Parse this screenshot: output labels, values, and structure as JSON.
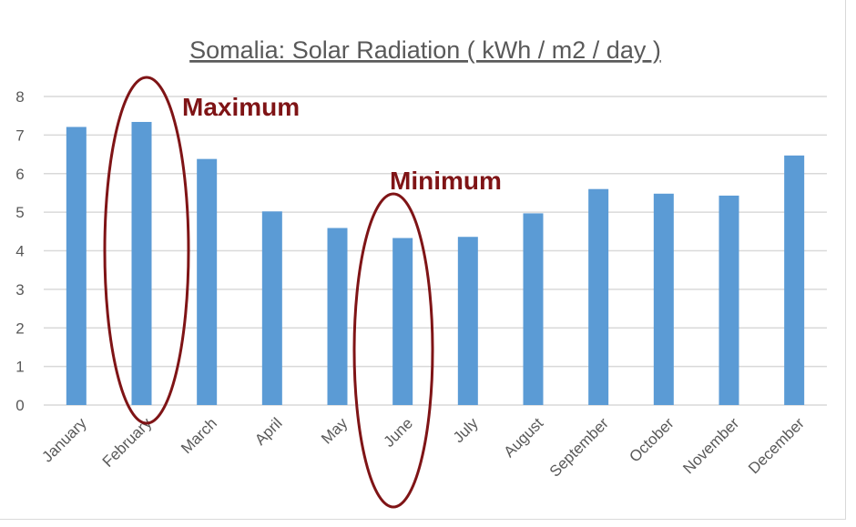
{
  "chart_data": {
    "type": "bar",
    "title": "Somalia: Solar Radiation ( kWh / m2 / day )",
    "xlabel": "",
    "ylabel": "",
    "categories": [
      "January",
      "February",
      "March",
      "April",
      "May",
      "June",
      "July",
      "August",
      "September",
      "October",
      "November",
      "December"
    ],
    "values": [
      7.21,
      7.34,
      6.38,
      5.02,
      4.59,
      4.33,
      4.36,
      4.97,
      5.6,
      5.48,
      5.43,
      6.47
    ],
    "ylim": [
      0,
      8
    ],
    "yticks": [
      0,
      1,
      2,
      3,
      4,
      5,
      6,
      7,
      8
    ],
    "grid": true,
    "bar_color": "#5B9BD5",
    "annotations": [
      {
        "text": "Maximum",
        "category": "February",
        "color": "#7F1416"
      },
      {
        "text": "Minimum",
        "category": "June",
        "color": "#7F1416"
      }
    ]
  }
}
